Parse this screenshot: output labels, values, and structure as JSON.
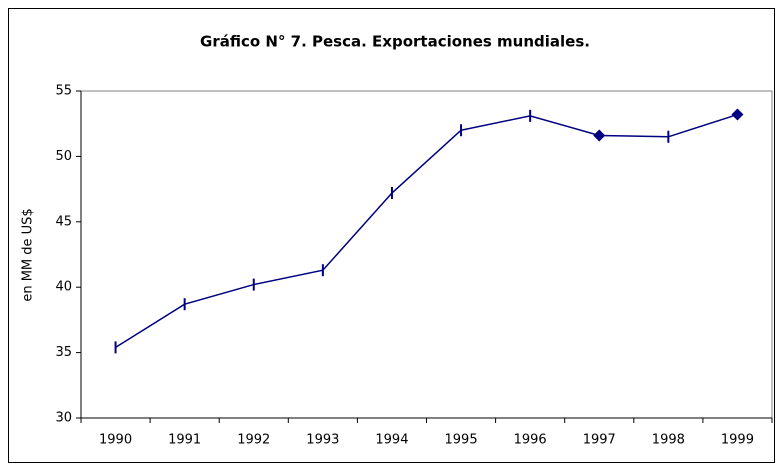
{
  "chart_data": {
    "type": "line",
    "title": "Gráfico N° 7. Pesca. Exportaciones mundiales.",
    "y_label": "en MM de US$",
    "categories": [
      "1990",
      "1991",
      "1992",
      "1993",
      "1994",
      "1995",
      "1996",
      "1997",
      "1998",
      "1999"
    ],
    "series": [
      {
        "name": "Exportaciones",
        "color": "#000080",
        "values": [
          35.4,
          38.7,
          40.2,
          41.3,
          47.2,
          52.0,
          53.1,
          51.6,
          51.5,
          53.2
        ],
        "markers": [
          "tick",
          "tick",
          "tick",
          "tick",
          "tick",
          "tick",
          "tick",
          "diamond",
          "tick",
          "diamond"
        ]
      }
    ],
    "ylim": [
      30,
      55
    ],
    "yticks": [
      30,
      35,
      40,
      45,
      50,
      55
    ],
    "grid": false,
    "legend": false
  }
}
